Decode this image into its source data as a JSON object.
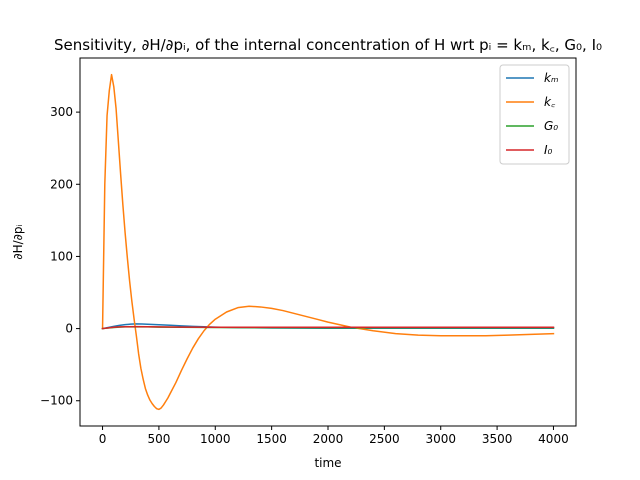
{
  "chart_data": {
    "type": "line",
    "title": "Sensitivity, ∂H/∂pᵢ, of the internal concentration of H wrt pᵢ = kₘ, k꜀, G₀, I₀",
    "xlabel": "time",
    "ylabel": "∂H/∂pᵢ",
    "xlim": [
      -200,
      4200
    ],
    "ylim": [
      -135,
      375
    ],
    "xticks": [
      0,
      500,
      1000,
      1500,
      2000,
      2500,
      3000,
      3500,
      4000
    ],
    "yticks": [
      -100,
      0,
      100,
      200,
      300
    ],
    "xtick_labels": [
      "0",
      "500",
      "1000",
      "1500",
      "2000",
      "2500",
      "3000",
      "3500",
      "4000"
    ],
    "ytick_labels": [
      "−100",
      "0",
      "100",
      "200",
      "300"
    ],
    "grid": false,
    "legend_position": "top-right",
    "series": [
      {
        "name": "kₘ",
        "color": "#1f77b4",
        "x": [
          0,
          50,
          100,
          150,
          200,
          250,
          300,
          350,
          400,
          500,
          600,
          700,
          800,
          900,
          1000,
          1200,
          1500,
          2000,
          2500,
          3000,
          3500,
          4000
        ],
        "values": [
          0,
          1.5,
          3,
          4.5,
          5.5,
          6.2,
          6.5,
          6.4,
          6.1,
          5.4,
          4.6,
          3.8,
          3.1,
          2.5,
          2.0,
          1.4,
          0.9,
          0.5,
          0.4,
          0.4,
          0.4,
          0.4
        ]
      },
      {
        "name": "k꜀",
        "color": "#ff7f0e",
        "x": [
          0,
          20,
          40,
          60,
          80,
          100,
          120,
          140,
          160,
          180,
          200,
          220,
          240,
          260,
          280,
          300,
          320,
          340,
          360,
          380,
          400,
          420,
          440,
          460,
          480,
          500,
          520,
          540,
          560,
          580,
          600,
          650,
          700,
          750,
          800,
          850,
          900,
          950,
          1000,
          1100,
          1200,
          1300,
          1400,
          1500,
          1600,
          1700,
          1800,
          1900,
          2000,
          2200,
          2400,
          2600,
          2800,
          3000,
          3200,
          3400,
          3600,
          3800,
          4000
        ],
        "values": [
          0,
          200,
          295,
          330,
          352,
          335,
          305,
          260,
          215,
          172,
          133,
          98,
          66,
          38,
          13,
          -10,
          -35,
          -55,
          -70,
          -83,
          -92,
          -99,
          -104,
          -108,
          -111,
          -112,
          -110,
          -106,
          -101,
          -96,
          -90,
          -75,
          -58,
          -42,
          -27,
          -14,
          -3,
          6,
          13,
          23,
          29,
          31,
          30,
          28,
          25,
          21,
          17,
          13,
          9,
          2,
          -3,
          -7,
          -9,
          -10,
          -10,
          -10,
          -9,
          -8,
          -7
        ]
      },
      {
        "name": "G₀",
        "color": "#2ca02c",
        "x": [
          0,
          50,
          100,
          150,
          200,
          300,
          400,
          500,
          700,
          1000,
          1500,
          2000,
          2500,
          3000,
          3500,
          4000
        ],
        "values": [
          0,
          0.8,
          1.5,
          2.0,
          2.3,
          2.4,
          2.3,
          2.1,
          1.8,
          1.5,
          1.3,
          1.2,
          1.2,
          1.2,
          1.2,
          1.2
        ]
      },
      {
        "name": "I₀",
        "color": "#d62728",
        "x": [
          0,
          50,
          100,
          150,
          200,
          300,
          400,
          500,
          700,
          1000,
          1500,
          2000,
          2500,
          3000,
          3500,
          4000
        ],
        "values": [
          0,
          1.0,
          1.8,
          2.3,
          2.6,
          2.7,
          2.6,
          2.4,
          2.1,
          1.9,
          1.8,
          1.8,
          1.8,
          1.8,
          1.8,
          1.8
        ]
      }
    ]
  }
}
